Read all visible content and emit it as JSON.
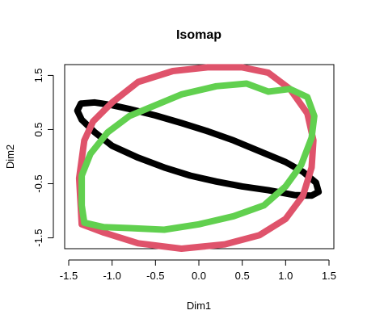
{
  "chart_data": {
    "type": "line",
    "title": "Isomap",
    "xlabel": "Dim1",
    "ylabel": "Dim2",
    "xlim": [
      -1.5,
      1.5
    ],
    "ylim": [
      -1.7,
      1.7
    ],
    "xticks": [
      -1.5,
      -1.0,
      -0.5,
      0.0,
      0.5,
      1.0,
      1.5
    ],
    "xtick_labels": [
      "-1.5",
      "-1.0",
      "-0.5",
      "0.0",
      "0.5",
      "1.0",
      "1.5"
    ],
    "yticks": [
      -1.5,
      -0.5,
      0.5,
      1.5
    ],
    "ytick_labels": [
      "-1.5",
      "-0.5",
      "0.5",
      "1.5"
    ],
    "grid": false,
    "legend": "none",
    "series": [
      {
        "color": "#000000",
        "x": [
          -1.36,
          -1.2,
          -1.0,
          -0.8,
          -0.5,
          -0.2,
          0.1,
          0.4,
          0.7,
          1.0,
          1.2,
          1.35,
          1.38,
          1.3,
          1.1,
          0.8,
          0.5,
          0.2,
          -0.1,
          -0.4,
          -0.7,
          -1.0,
          -1.2,
          -1.35,
          -1.4,
          -1.36
        ],
        "y": [
          0.98,
          1.0,
          0.95,
          0.88,
          0.76,
          0.62,
          0.47,
          0.3,
          0.1,
          -0.1,
          -0.28,
          -0.48,
          -0.65,
          -0.72,
          -0.71,
          -0.62,
          -0.55,
          -0.46,
          -0.35,
          -0.2,
          -0.02,
          0.2,
          0.45,
          0.68,
          0.85,
          0.98
        ]
      },
      {
        "color": "#df536b",
        "x": [
          -1.35,
          -1.1,
          -0.7,
          -0.2,
          0.3,
          0.7,
          1.0,
          1.2,
          1.3,
          1.32,
          1.25,
          1.05,
          0.8,
          0.5,
          0.1,
          -0.3,
          -0.7,
          -1.0,
          -1.22,
          -1.32,
          -1.38,
          -1.35
        ],
        "y": [
          -1.25,
          -1.4,
          -1.6,
          -1.7,
          -1.62,
          -1.45,
          -1.15,
          -0.72,
          -0.2,
          0.3,
          0.8,
          1.25,
          1.55,
          1.65,
          1.65,
          1.58,
          1.38,
          1.0,
          0.65,
          0.3,
          -0.4,
          -1.25
        ]
      },
      {
        "color": "#61d04f",
        "x": [
          -1.32,
          -1.1,
          -0.8,
          -0.4,
          0.0,
          0.4,
          0.75,
          1.0,
          1.18,
          1.3,
          1.33,
          1.25,
          1.05,
          0.8,
          0.55,
          0.2,
          -0.2,
          -0.5,
          -0.8,
          -1.05,
          -1.25,
          -1.35,
          -1.35,
          -1.32
        ],
        "y": [
          -1.22,
          -1.3,
          -1.32,
          -1.35,
          -1.25,
          -1.1,
          -0.9,
          -0.55,
          -0.15,
          0.35,
          0.75,
          1.1,
          1.25,
          1.2,
          1.35,
          1.3,
          1.15,
          0.95,
          0.75,
          0.45,
          0.05,
          -0.35,
          -0.9,
          -1.22
        ]
      }
    ]
  }
}
